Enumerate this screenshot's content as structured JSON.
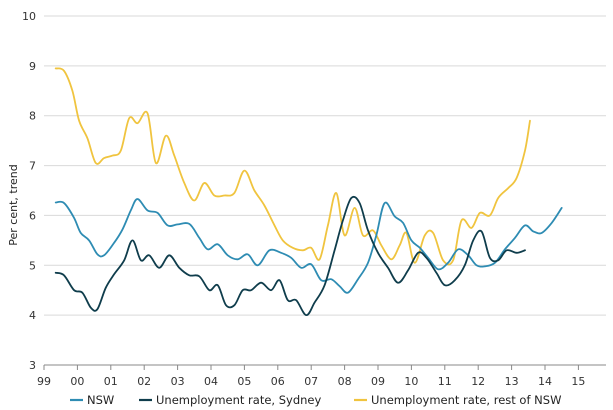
{
  "chart_data": {
    "type": "line",
    "title": "",
    "ylabel": "Per cent, trend",
    "xlabel": "",
    "ylim": [
      3,
      10
    ],
    "yticks": [
      3,
      4,
      5,
      6,
      7,
      8,
      9,
      10
    ],
    "xlim": [
      1999.0,
      2016.0
    ],
    "xtick_labels": [
      "99",
      "00",
      "01",
      "02",
      "03",
      "04",
      "05",
      "06",
      "07",
      "08",
      "09",
      "10",
      "11",
      "12",
      "13",
      "14",
      "15"
    ],
    "grid": "horizontal",
    "legend_position": "bottom",
    "series": [
      {
        "name": "NSW",
        "color": "#2e8cb3",
        "points": [
          [
            1999.35,
            6.26
          ],
          [
            1999.6,
            6.25
          ],
          [
            1999.9,
            5.95
          ],
          [
            2000.1,
            5.65
          ],
          [
            2000.35,
            5.5
          ],
          [
            2000.6,
            5.22
          ],
          [
            2000.8,
            5.2
          ],
          [
            2001.1,
            5.45
          ],
          [
            2001.35,
            5.72
          ],
          [
            2001.6,
            6.1
          ],
          [
            2001.8,
            6.33
          ],
          [
            2002.1,
            6.1
          ],
          [
            2002.4,
            6.05
          ],
          [
            2002.7,
            5.8
          ],
          [
            2003.0,
            5.82
          ],
          [
            2003.35,
            5.83
          ],
          [
            2003.65,
            5.55
          ],
          [
            2003.9,
            5.32
          ],
          [
            2004.2,
            5.42
          ],
          [
            2004.5,
            5.2
          ],
          [
            2004.8,
            5.12
          ],
          [
            2005.1,
            5.22
          ],
          [
            2005.4,
            5.0
          ],
          [
            2005.75,
            5.3
          ],
          [
            2006.1,
            5.25
          ],
          [
            2006.4,
            5.15
          ],
          [
            2006.7,
            4.95
          ],
          [
            2007.0,
            5.02
          ],
          [
            2007.3,
            4.7
          ],
          [
            2007.6,
            4.72
          ],
          [
            2007.85,
            4.58
          ],
          [
            2008.1,
            4.45
          ],
          [
            2008.4,
            4.72
          ],
          [
            2008.7,
            5.05
          ],
          [
            2008.95,
            5.6
          ],
          [
            2009.2,
            6.25
          ],
          [
            2009.5,
            5.98
          ],
          [
            2009.75,
            5.85
          ],
          [
            2010.0,
            5.5
          ],
          [
            2010.25,
            5.35
          ],
          [
            2010.5,
            5.15
          ],
          [
            2010.8,
            4.92
          ],
          [
            2011.1,
            5.05
          ],
          [
            2011.4,
            5.32
          ],
          [
            2011.7,
            5.2
          ],
          [
            2011.95,
            5.0
          ],
          [
            2012.2,
            4.98
          ],
          [
            2012.5,
            5.05
          ],
          [
            2012.8,
            5.32
          ],
          [
            2013.1,
            5.55
          ],
          [
            2013.4,
            5.8
          ],
          [
            2013.65,
            5.68
          ],
          [
            2013.9,
            5.65
          ],
          [
            2014.2,
            5.85
          ],
          [
            2014.5,
            6.15
          ]
        ]
      },
      {
        "name": "Unemployment rate, Sydney",
        "color": "#0f3d4c",
        "points": [
          [
            1999.35,
            4.85
          ],
          [
            1999.6,
            4.8
          ],
          [
            1999.9,
            4.5
          ],
          [
            2000.15,
            4.45
          ],
          [
            2000.4,
            4.15
          ],
          [
            2000.6,
            4.12
          ],
          [
            2000.85,
            4.55
          ],
          [
            2001.1,
            4.82
          ],
          [
            2001.4,
            5.1
          ],
          [
            2001.65,
            5.5
          ],
          [
            2001.9,
            5.1
          ],
          [
            2002.15,
            5.2
          ],
          [
            2002.45,
            4.95
          ],
          [
            2002.75,
            5.2
          ],
          [
            2003.05,
            4.95
          ],
          [
            2003.35,
            4.8
          ],
          [
            2003.65,
            4.78
          ],
          [
            2003.95,
            4.5
          ],
          [
            2004.2,
            4.6
          ],
          [
            2004.45,
            4.2
          ],
          [
            2004.7,
            4.2
          ],
          [
            2004.95,
            4.5
          ],
          [
            2005.2,
            4.5
          ],
          [
            2005.5,
            4.65
          ],
          [
            2005.8,
            4.5
          ],
          [
            2006.05,
            4.7
          ],
          [
            2006.3,
            4.3
          ],
          [
            2006.55,
            4.3
          ],
          [
            2006.85,
            4.0
          ],
          [
            2007.1,
            4.25
          ],
          [
            2007.4,
            4.6
          ],
          [
            2007.7,
            5.3
          ],
          [
            2007.95,
            5.9
          ],
          [
            2008.2,
            6.35
          ],
          [
            2008.45,
            6.25
          ],
          [
            2008.7,
            5.7
          ],
          [
            2009.0,
            5.25
          ],
          [
            2009.3,
            4.95
          ],
          [
            2009.6,
            4.65
          ],
          [
            2009.9,
            4.9
          ],
          [
            2010.2,
            5.25
          ],
          [
            2010.45,
            5.15
          ],
          [
            2010.75,
            4.85
          ],
          [
            2011.0,
            4.6
          ],
          [
            2011.3,
            4.7
          ],
          [
            2011.6,
            5.0
          ],
          [
            2011.85,
            5.5
          ],
          [
            2012.1,
            5.68
          ],
          [
            2012.35,
            5.15
          ],
          [
            2012.6,
            5.1
          ],
          [
            2012.85,
            5.3
          ],
          [
            2013.15,
            5.25
          ],
          [
            2013.4,
            5.3
          ]
        ]
      },
      {
        "name": "Unemployment rate, rest of NSW",
        "color": "#f0c43f",
        "points": [
          [
            1999.35,
            8.95
          ],
          [
            1999.6,
            8.9
          ],
          [
            1999.85,
            8.5
          ],
          [
            2000.05,
            7.9
          ],
          [
            2000.3,
            7.55
          ],
          [
            2000.55,
            7.05
          ],
          [
            2000.8,
            7.15
          ],
          [
            2001.05,
            7.2
          ],
          [
            2001.3,
            7.3
          ],
          [
            2001.55,
            7.95
          ],
          [
            2001.8,
            7.85
          ],
          [
            2002.1,
            8.05
          ],
          [
            2002.35,
            7.05
          ],
          [
            2002.65,
            7.6
          ],
          [
            2002.9,
            7.2
          ],
          [
            2003.2,
            6.65
          ],
          [
            2003.5,
            6.3
          ],
          [
            2003.8,
            6.65
          ],
          [
            2004.1,
            6.4
          ],
          [
            2004.4,
            6.4
          ],
          [
            2004.7,
            6.45
          ],
          [
            2005.0,
            6.9
          ],
          [
            2005.3,
            6.5
          ],
          [
            2005.6,
            6.2
          ],
          [
            2005.9,
            5.8
          ],
          [
            2006.15,
            5.5
          ],
          [
            2006.45,
            5.35
          ],
          [
            2006.75,
            5.3
          ],
          [
            2007.0,
            5.35
          ],
          [
            2007.25,
            5.12
          ],
          [
            2007.5,
            5.8
          ],
          [
            2007.75,
            6.45
          ],
          [
            2008.0,
            5.6
          ],
          [
            2008.3,
            6.15
          ],
          [
            2008.55,
            5.6
          ],
          [
            2008.85,
            5.7
          ],
          [
            2009.1,
            5.4
          ],
          [
            2009.4,
            5.12
          ],
          [
            2009.65,
            5.4
          ],
          [
            2009.85,
            5.65
          ],
          [
            2010.1,
            5.05
          ],
          [
            2010.4,
            5.6
          ],
          [
            2010.65,
            5.65
          ],
          [
            2010.95,
            5.1
          ],
          [
            2011.25,
            5.1
          ],
          [
            2011.5,
            5.9
          ],
          [
            2011.8,
            5.75
          ],
          [
            2012.05,
            6.05
          ],
          [
            2012.35,
            6.0
          ],
          [
            2012.6,
            6.35
          ],
          [
            2012.9,
            6.55
          ],
          [
            2013.15,
            6.75
          ],
          [
            2013.4,
            7.3
          ],
          [
            2013.55,
            7.9
          ]
        ]
      }
    ]
  }
}
